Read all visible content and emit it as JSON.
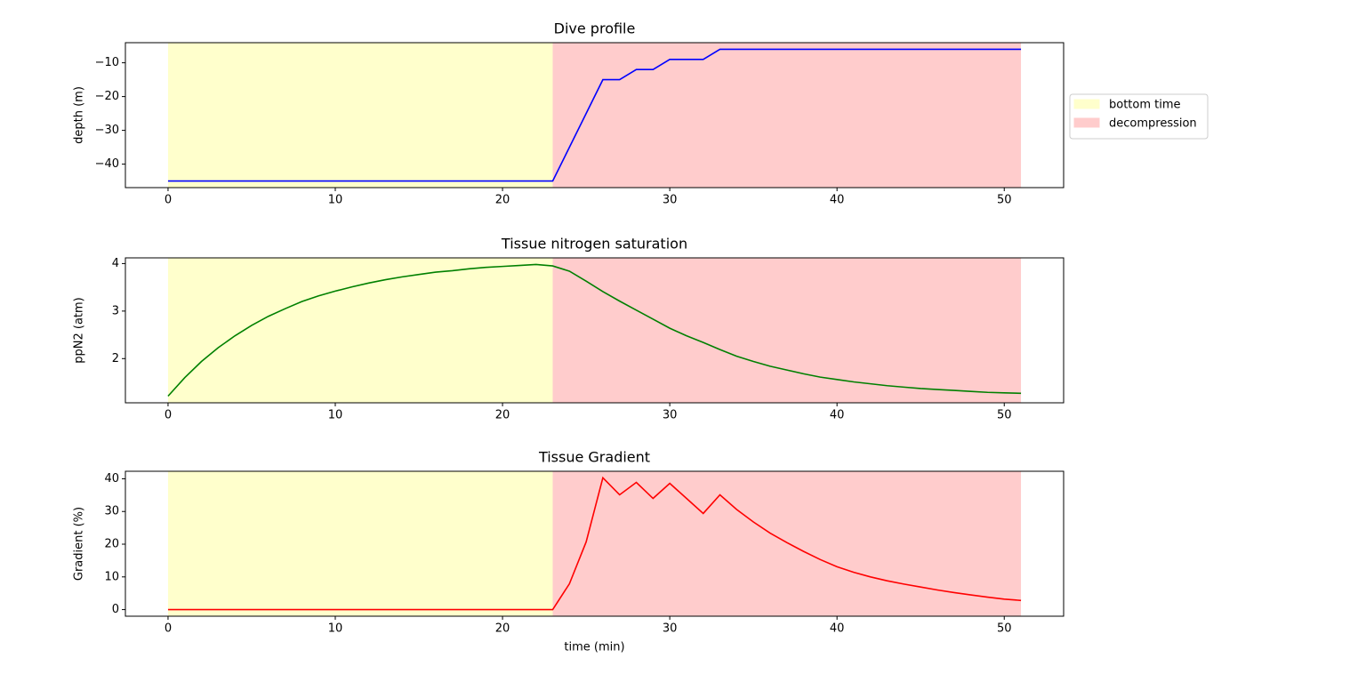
{
  "chart_data": [
    {
      "type": "line",
      "title": "Dive profile",
      "ylabel": "depth (m)",
      "x": [
        0,
        1,
        2,
        3,
        4,
        5,
        6,
        7,
        8,
        9,
        10,
        11,
        12,
        13,
        14,
        15,
        16,
        17,
        18,
        19,
        20,
        21,
        22,
        23,
        24,
        25,
        26,
        27,
        28,
        29,
        30,
        31,
        32,
        33,
        34,
        35,
        36,
        37,
        38,
        39,
        40,
        41,
        42,
        43,
        44,
        45,
        46,
        47,
        48,
        49,
        50,
        51
      ],
      "values": [
        -45,
        -45,
        -45,
        -45,
        -45,
        -45,
        -45,
        -45,
        -45,
        -45,
        -45,
        -45,
        -45,
        -45,
        -45,
        -45,
        -45,
        -45,
        -45,
        -45,
        -45,
        -45,
        -45,
        -45,
        -35,
        -25,
        -15,
        -15,
        -12,
        -12,
        -9,
        -9,
        -9,
        -6,
        -6,
        -6,
        -6,
        -6,
        -6,
        -6,
        -6,
        -6,
        -6,
        -6,
        -6,
        -6,
        -6,
        -6,
        -6,
        -6,
        -6,
        -6
      ],
      "color": "#0000ff",
      "xlim": [
        -2.55,
        53.55
      ],
      "xticks": [
        0,
        10,
        20,
        30,
        40,
        50
      ],
      "ylim": [
        -46.95,
        -4.05
      ],
      "yticks": [
        {
          "value": -10,
          "label": "−10"
        },
        {
          "value": -20,
          "label": "−20"
        },
        {
          "value": -30,
          "label": "−30"
        },
        {
          "value": -40,
          "label": "−40"
        }
      ],
      "spans": [
        {
          "name": "bottom time",
          "start": 0,
          "end": 23,
          "color": "#ffffcc"
        },
        {
          "name": "decompression",
          "start": 23,
          "end": 51,
          "color": "#ffcccc"
        }
      ],
      "legend": "outside-right"
    },
    {
      "type": "line",
      "title": "Tissue nitrogen saturation",
      "ylabel": "ppN2 (atm)",
      "x": [
        0,
        1,
        2,
        3,
        4,
        5,
        6,
        7,
        8,
        9,
        10,
        11,
        12,
        13,
        14,
        15,
        16,
        17,
        18,
        19,
        20,
        21,
        22,
        23,
        24,
        25,
        26,
        27,
        28,
        29,
        30,
        31,
        32,
        33,
        34,
        35,
        36,
        37,
        38,
        39,
        40,
        41,
        42,
        43,
        44,
        45,
        46,
        47,
        48,
        49,
        50,
        51
      ],
      "values": [
        1.21,
        1.6,
        1.94,
        2.23,
        2.48,
        2.7,
        2.89,
        3.05,
        3.2,
        3.32,
        3.42,
        3.51,
        3.59,
        3.66,
        3.72,
        3.77,
        3.82,
        3.85,
        3.89,
        3.92,
        3.94,
        3.96,
        3.98,
        3.95,
        3.84,
        3.63,
        3.41,
        3.21,
        3.02,
        2.83,
        2.64,
        2.48,
        2.34,
        2.19,
        2.05,
        1.94,
        1.84,
        1.76,
        1.68,
        1.61,
        1.56,
        1.51,
        1.47,
        1.43,
        1.4,
        1.37,
        1.35,
        1.33,
        1.31,
        1.29,
        1.28,
        1.27
      ],
      "color": "#008000",
      "xlim": [
        -2.55,
        53.55
      ],
      "xticks": [
        0,
        10,
        20,
        30,
        40,
        50
      ],
      "ylim": [
        1.07,
        4.12
      ],
      "yticks": [
        2,
        3,
        4
      ],
      "spans": [
        {
          "start": 0,
          "end": 23,
          "color": "#ffffcc"
        },
        {
          "start": 23,
          "end": 51,
          "color": "#ffcccc"
        }
      ]
    },
    {
      "type": "line",
      "title": "Tissue Gradient",
      "ylabel": "Gradient (%)",
      "xlabel": "time (min)",
      "x": [
        0,
        1,
        2,
        3,
        4,
        5,
        6,
        7,
        8,
        9,
        10,
        11,
        12,
        13,
        14,
        15,
        16,
        17,
        18,
        19,
        20,
        21,
        22,
        23,
        24,
        25,
        26,
        27,
        28,
        29,
        30,
        31,
        32,
        33,
        34,
        35,
        36,
        37,
        38,
        39,
        40,
        41,
        42,
        43,
        44,
        45,
        46,
        47,
        48,
        49,
        50,
        51
      ],
      "values": [
        0,
        0,
        0,
        0,
        0,
        0,
        0,
        0,
        0,
        0,
        0,
        0,
        0,
        0,
        0,
        0,
        0,
        0,
        0,
        0,
        0,
        0,
        0,
        0,
        7.9,
        20.7,
        40.3,
        35.1,
        38.9,
        34.0,
        38.6,
        34.0,
        29.4,
        35.1,
        30.6,
        26.8,
        23.4,
        20.5,
        17.8,
        15.3,
        13.1,
        11.4,
        10.0,
        8.8,
        7.8,
        6.9,
        6.0,
        5.2,
        4.5,
        3.8,
        3.2,
        2.8
      ],
      "color": "#ff0000",
      "xlim": [
        -2.55,
        53.55
      ],
      "xticks": [
        0,
        10,
        20,
        30,
        40,
        50
      ],
      "ylim": [
        -2.02,
        42.3
      ],
      "yticks": [
        0,
        10,
        20,
        30,
        40
      ],
      "spans": [
        {
          "start": 0,
          "end": 23,
          "color": "#ffffcc"
        },
        {
          "start": 23,
          "end": 51,
          "color": "#ffcccc"
        }
      ]
    }
  ]
}
